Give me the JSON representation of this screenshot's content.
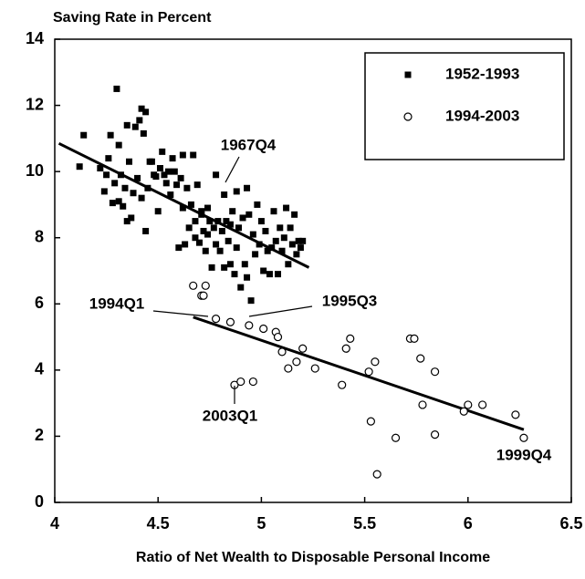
{
  "chart_data": {
    "type": "scatter",
    "title": "Saving Rate in Percent",
    "x_label": "Ratio of Net Wealth to Disposable Personal Income",
    "xlim": [
      4,
      6.5
    ],
    "ylim": [
      0,
      14
    ],
    "xticks": [
      4,
      4.5,
      5,
      5.5,
      6,
      6.5
    ],
    "yticks": [
      0,
      2,
      4,
      6,
      8,
      10,
      12,
      14
    ],
    "legend": "upper right",
    "series": [
      {
        "name": "1952-1993",
        "color": "#000000",
        "marker": "square",
        "x": [
          4.12,
          4.14,
          4.22,
          4.24,
          4.25,
          4.26,
          4.27,
          4.28,
          4.29,
          4.3,
          4.31,
          4.31,
          4.32,
          4.33,
          4.34,
          4.35,
          4.35,
          4.36,
          4.37,
          4.38,
          4.39,
          4.4,
          4.41,
          4.42,
          4.42,
          4.43,
          4.44,
          4.44,
          4.45,
          4.46,
          4.47,
          4.48,
          4.49,
          4.5,
          4.51,
          4.52,
          4.53,
          4.54,
          4.55,
          4.56,
          4.57,
          4.58,
          4.59,
          4.6,
          4.61,
          4.62,
          4.62,
          4.63,
          4.64,
          4.65,
          4.66,
          4.67,
          4.68,
          4.68,
          4.69,
          4.7,
          4.71,
          4.72,
          4.73,
          4.74,
          4.75,
          4.76,
          4.77,
          4.78,
          4.78,
          4.79,
          4.8,
          4.81,
          4.82,
          4.82,
          4.83,
          4.84,
          4.85,
          4.86,
          4.87,
          4.88,
          4.88,
          4.89,
          4.9,
          4.91,
          4.92,
          4.93,
          4.93,
          4.94,
          4.95,
          4.96,
          4.97,
          4.98,
          4.99,
          5.0,
          5.01,
          5.02,
          5.03,
          5.04,
          5.05,
          5.06,
          5.07,
          5.08,
          5.09,
          5.1,
          5.11,
          5.12,
          5.13,
          5.14,
          5.15,
          5.16,
          5.17,
          5.18,
          5.19,
          5.2,
          4.71,
          4.74,
          4.85
        ],
        "values": [
          10.15,
          11.1,
          10.1,
          9.4,
          9.9,
          10.4,
          11.1,
          9.05,
          9.65,
          12.5,
          10.8,
          9.1,
          9.9,
          8.95,
          9.5,
          11.4,
          8.5,
          10.3,
          8.6,
          9.35,
          11.35,
          9.8,
          11.55,
          11.9,
          9.2,
          11.15,
          11.8,
          8.2,
          9.5,
          10.3,
          10.3,
          9.9,
          9.85,
          8.8,
          10.1,
          10.6,
          9.9,
          9.65,
          10.0,
          9.3,
          10.4,
          10.0,
          9.6,
          7.7,
          9.8,
          8.9,
          10.5,
          7.8,
          9.5,
          8.3,
          9.0,
          10.5,
          8.5,
          8.0,
          9.6,
          7.85,
          8.8,
          8.2,
          7.6,
          8.9,
          8.5,
          7.1,
          8.3,
          9.9,
          7.8,
          8.5,
          7.6,
          8.2,
          9.3,
          7.1,
          8.5,
          7.9,
          7.2,
          8.8,
          6.9,
          9.4,
          7.7,
          8.3,
          6.5,
          8.6,
          7.2,
          9.5,
          6.8,
          8.7,
          6.1,
          8.1,
          7.5,
          9.0,
          7.8,
          8.5,
          7.0,
          8.2,
          7.6,
          6.9,
          7.7,
          8.8,
          7.9,
          6.9,
          8.3,
          7.6,
          8.0,
          8.9,
          7.2,
          8.3,
          7.8,
          8.7,
          7.5,
          7.9,
          7.7,
          7.9,
          8.7,
          8.1,
          8.4
        ]
      },
      {
        "name": "1994-2003",
        "color": "#000000",
        "marker": "circle",
        "x": [
          4.67,
          4.73,
          4.71,
          4.72,
          4.78,
          4.85,
          4.94,
          5.01,
          5.07,
          5.08,
          5.1,
          5.13,
          5.17,
          5.2,
          5.26,
          5.39,
          5.41,
          5.43,
          5.52,
          5.53,
          5.55,
          5.56,
          5.65,
          5.72,
          5.74,
          5.77,
          5.78,
          5.84,
          5.84,
          5.98,
          6.0,
          6.07,
          6.23,
          6.27,
          4.87,
          4.9,
          4.96
        ],
        "values": [
          6.55,
          6.55,
          6.25,
          6.25,
          5.55,
          5.45,
          5.35,
          5.25,
          5.15,
          5.0,
          4.55,
          4.05,
          4.25,
          4.65,
          4.05,
          3.55,
          4.65,
          4.95,
          3.95,
          2.45,
          4.25,
          0.85,
          1.95,
          4.95,
          4.95,
          4.35,
          2.95,
          3.95,
          2.05,
          2.75,
          2.95,
          2.95,
          2.65,
          1.95,
          3.55,
          3.65,
          3.65
        ]
      }
    ],
    "fit_lines": [
      {
        "x": [
          4.02,
          5.23
        ],
        "values": [
          10.85,
          7.1
        ]
      },
      {
        "x": [
          4.67,
          6.27
        ],
        "values": [
          5.6,
          2.2
        ]
      }
    ],
    "annotations": [
      "1967Q4",
      "1994Q1",
      "1995Q3",
      "2003Q1",
      "1999Q4"
    ]
  }
}
